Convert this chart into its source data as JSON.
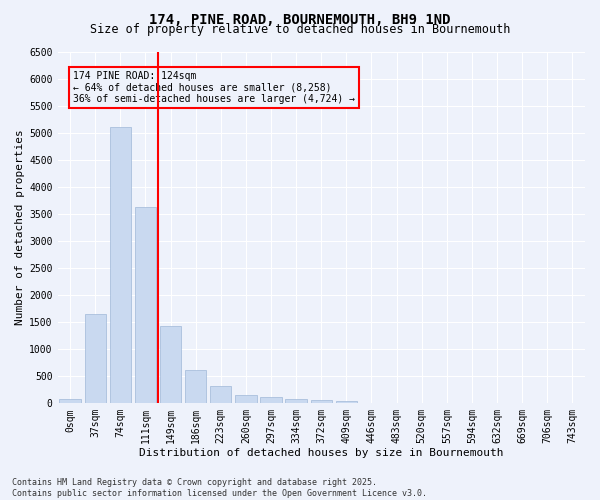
{
  "title_line1": "174, PINE ROAD, BOURNEMOUTH, BH9 1ND",
  "title_line2": "Size of property relative to detached houses in Bournemouth",
  "xlabel": "Distribution of detached houses by size in Bournemouth",
  "ylabel": "Number of detached properties",
  "footnote1": "Contains HM Land Registry data © Crown copyright and database right 2025.",
  "footnote2": "Contains public sector information licensed under the Open Government Licence v3.0.",
  "annotation_line1": "174 PINE ROAD: 124sqm",
  "annotation_line2": "← 64% of detached houses are smaller (8,258)",
  "annotation_line3": "36% of semi-detached houses are larger (4,724) →",
  "bar_color": "#c9d9f0",
  "bar_edge_color": "#a0b8d8",
  "vline_color": "red",
  "vline_x": 3.5,
  "annotation_box_color": "red",
  "categories": [
    "0sqm",
    "37sqm",
    "74sqm",
    "111sqm",
    "149sqm",
    "186sqm",
    "223sqm",
    "260sqm",
    "297sqm",
    "334sqm",
    "372sqm",
    "409sqm",
    "446sqm",
    "483sqm",
    "520sqm",
    "557sqm",
    "594sqm",
    "632sqm",
    "669sqm",
    "706sqm",
    "743sqm"
  ],
  "values": [
    75,
    1650,
    5100,
    3620,
    1420,
    620,
    310,
    150,
    110,
    75,
    55,
    35,
    10,
    5,
    3,
    2,
    1,
    1,
    0,
    0,
    0
  ],
  "ylim": [
    0,
    6500
  ],
  "yticks": [
    0,
    500,
    1000,
    1500,
    2000,
    2500,
    3000,
    3500,
    4000,
    4500,
    5000,
    5500,
    6000,
    6500
  ],
  "bg_color": "#eef2fb",
  "grid_color": "#ffffff",
  "title_fontsize": 10,
  "subtitle_fontsize": 8.5,
  "axis_label_fontsize": 8,
  "tick_fontsize": 7,
  "footnote_fontsize": 6
}
